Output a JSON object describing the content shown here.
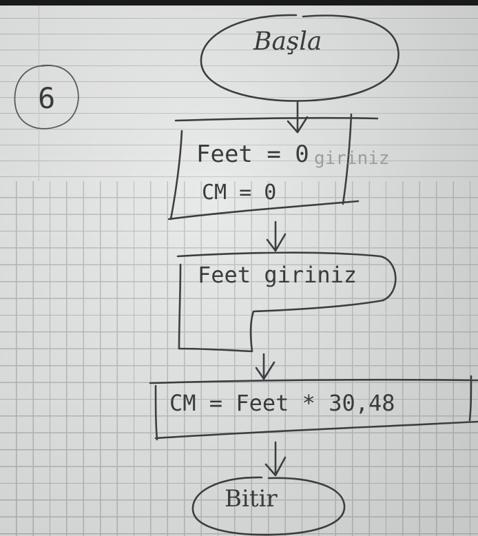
{
  "diagram": {
    "page_number": "6",
    "start": {
      "label": "Başla"
    },
    "init_box": {
      "line1": "Feet = 0",
      "line2": "CM = 0"
    },
    "ghost_text": "giriniz",
    "input_box": {
      "label": "Feet giriniz"
    },
    "process_box": {
      "label": "CM = Feet * 30,48"
    },
    "end": {
      "label": "Bitir"
    },
    "colors": {
      "paper": "#e9ebea",
      "grid": "#b6babc",
      "ink": "#3d3d3f"
    }
  }
}
